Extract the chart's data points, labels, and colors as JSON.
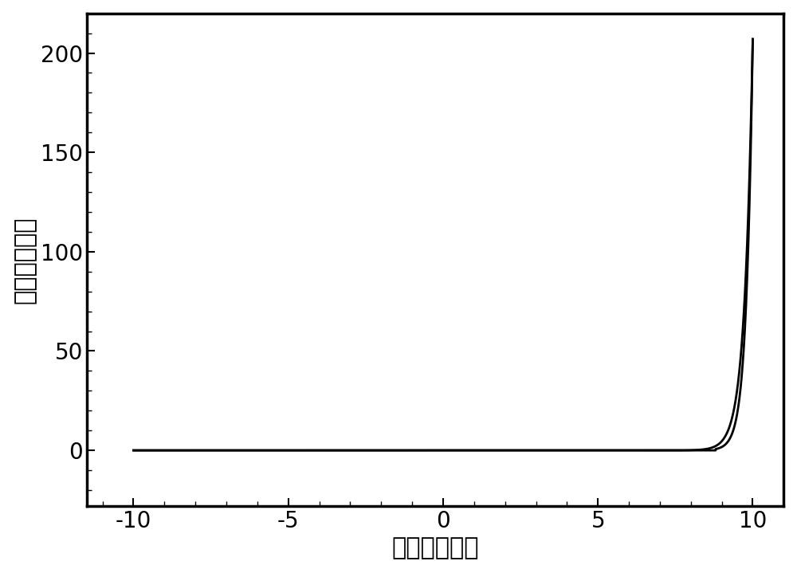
{
  "xlabel": "电压（伏特）",
  "ylabel": "电流（微安）",
  "xlim": [
    -11.5,
    11.0
  ],
  "ylim": [
    -28,
    220
  ],
  "xticks": [
    -10,
    -5,
    0,
    5,
    10
  ],
  "yticks": [
    0,
    50,
    100,
    150,
    200
  ],
  "line_color": "#000000",
  "line_width": 2.0,
  "background_color": "#ffffff",
  "axis_label_fontsize": 22,
  "tick_fontsize": 20,
  "spine_linewidth": 2.5
}
